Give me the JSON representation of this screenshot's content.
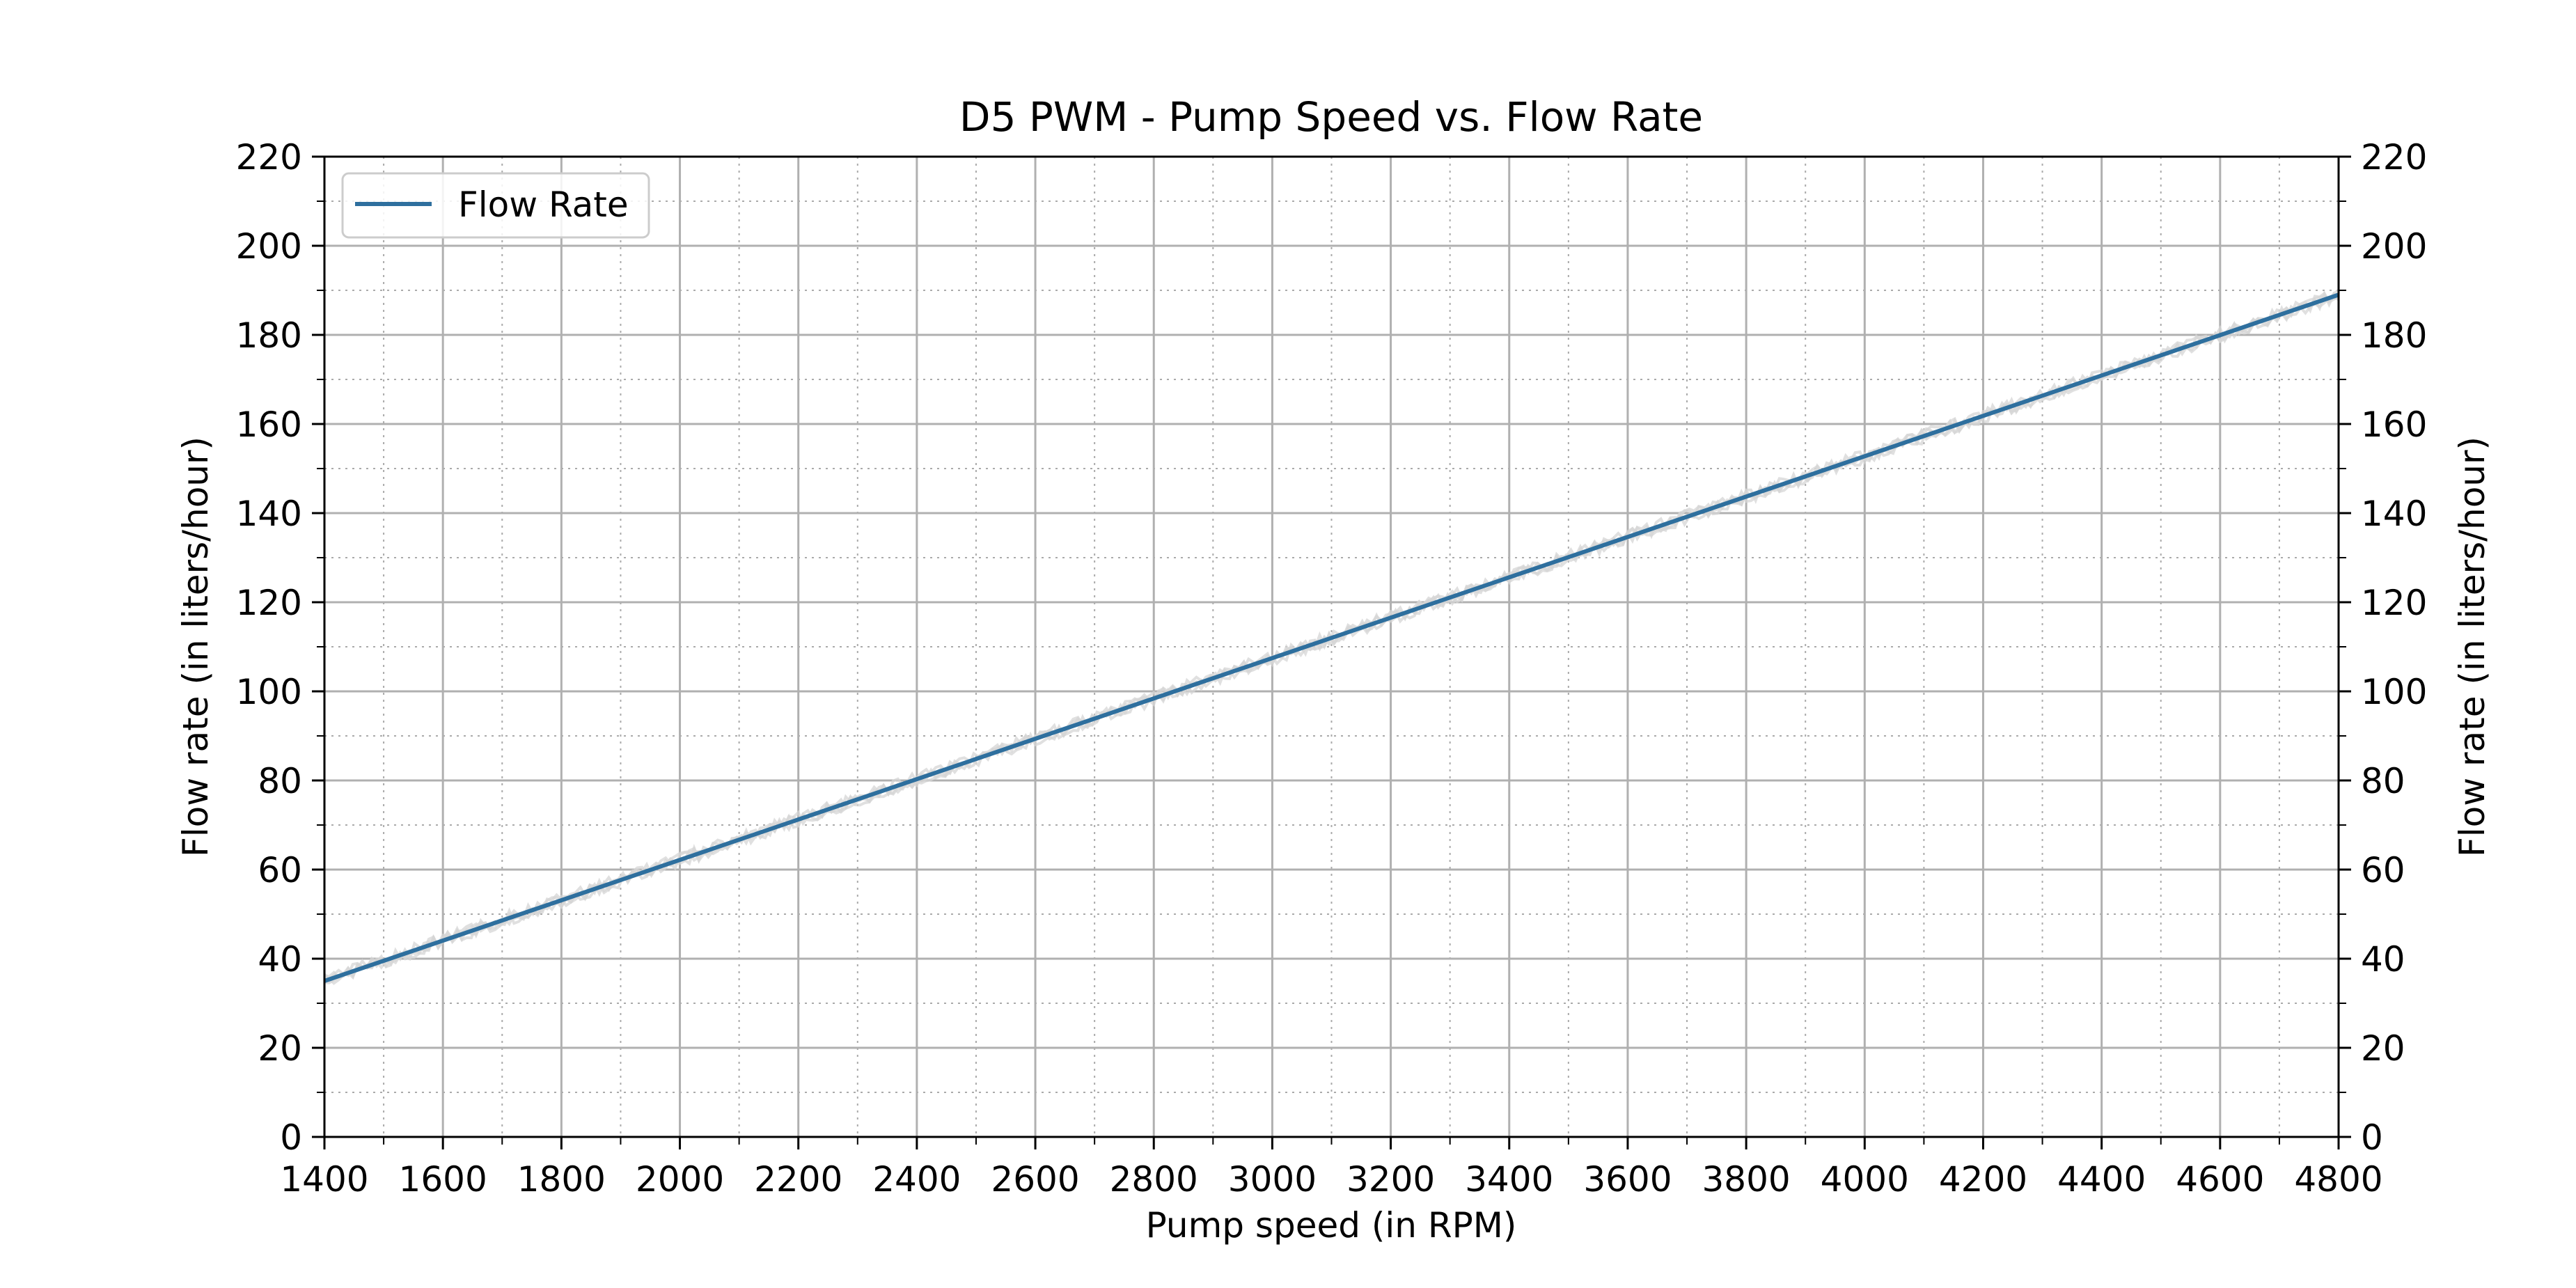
{
  "chart_data": {
    "type": "line",
    "title": "D5 PWM - Pump Speed vs. Flow Rate",
    "xlabel": "Pump speed (in RPM)",
    "ylabel": "Flow rate (in liters/hour)",
    "ylabel_right": "Flow rate (in liters/hour)",
    "xlim": [
      1400,
      4800
    ],
    "ylim": [
      0,
      220
    ],
    "x_ticks": [
      "1400",
      "1600",
      "1800",
      "2000",
      "2200",
      "2400",
      "2600",
      "2800",
      "3000",
      "3200",
      "3400",
      "3600",
      "3800",
      "4000",
      "4200",
      "4400",
      "4600",
      "4800"
    ],
    "y_ticks": [
      "0",
      "20",
      "40",
      "60",
      "80",
      "100",
      "120",
      "140",
      "160",
      "180",
      "200",
      "220"
    ],
    "x_minor_step": 100,
    "y_minor_step": 10,
    "grid": true,
    "legend": {
      "position": "top-left",
      "entries": [
        "Flow Rate"
      ]
    },
    "series": [
      {
        "name": "Flow Rate",
        "color": "#2e6f9e",
        "x": [
          1400,
          4800
        ],
        "y": [
          35,
          189
        ]
      }
    ],
    "raw_band_color": "#d6d6d6"
  }
}
